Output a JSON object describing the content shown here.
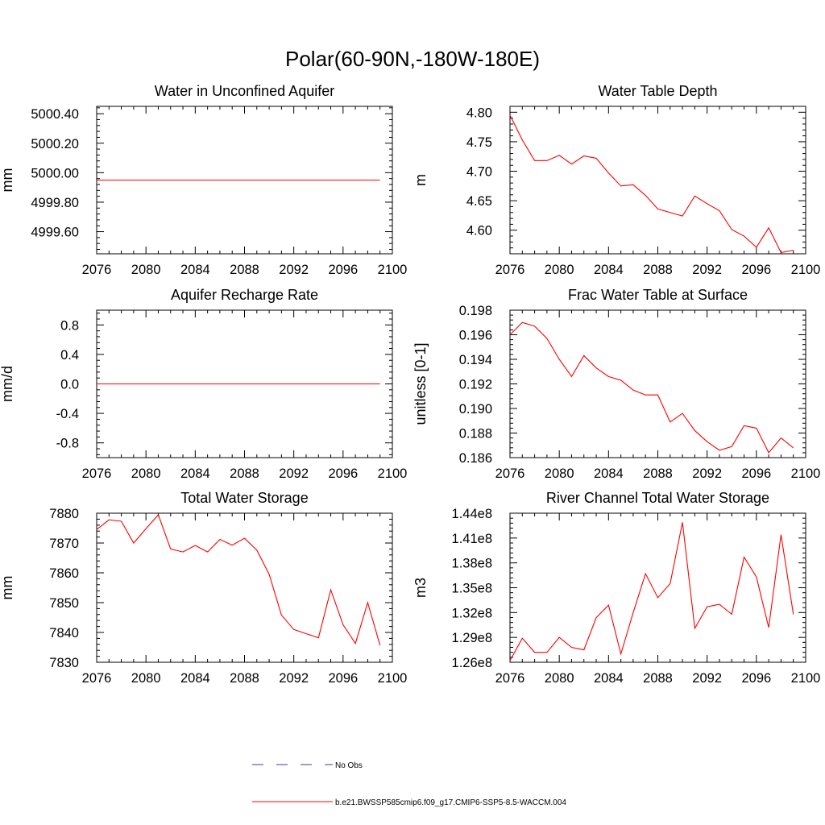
{
  "figure_title": "Polar(60-90N,-180W-180E)",
  "legend": {
    "entries": [
      {
        "label": "No Obs",
        "color": "#3a3ab8",
        "style": "dashed"
      },
      {
        "label": "b.e21.BWSSP585cmip6.f09_g17.CMIP6-SSP5-8.5-WACCM.004",
        "color": "#ff0000",
        "style": "solid"
      }
    ]
  },
  "chart_data": [
    {
      "type": "line",
      "title": "Water in Unconfined Aquifer",
      "xlabel": "",
      "ylabel": "mm",
      "xlim": [
        2076,
        2100
      ],
      "ylim": [
        4999.45,
        5000.45
      ],
      "xticks": [
        2076,
        2080,
        2084,
        2088,
        2092,
        2096,
        2100
      ],
      "xtick_labels": [
        "2076",
        "2080",
        "2084",
        "2088",
        "2092",
        "2096",
        "2100"
      ],
      "yticks": [
        4999.6,
        4999.8,
        5000.0,
        5000.2,
        5000.4
      ],
      "ytick_labels": [
        "4999.60",
        "4999.80",
        "5000.00",
        "5000.20",
        "5000.40"
      ],
      "grid": false,
      "series": [
        {
          "name": "b.e21.BWSSP585cmip6.f09_g17.CMIP6-SSP5-8.5-WACCM.004",
          "color": "#ff0000",
          "x": [
            2076,
            2077,
            2078,
            2079,
            2080,
            2081,
            2082,
            2083,
            2084,
            2085,
            2086,
            2087,
            2088,
            2089,
            2090,
            2091,
            2092,
            2093,
            2094,
            2095,
            2096,
            2097,
            2098,
            2099
          ],
          "y": [
            4999.95,
            4999.95,
            4999.95,
            4999.95,
            4999.95,
            4999.95,
            4999.95,
            4999.95,
            4999.95,
            4999.95,
            4999.95,
            4999.95,
            4999.95,
            4999.95,
            4999.95,
            4999.95,
            4999.95,
            4999.95,
            4999.95,
            4999.95,
            4999.95,
            4999.95,
            4999.95,
            4999.95
          ]
        }
      ]
    },
    {
      "type": "line",
      "title": "Water Table Depth",
      "xlabel": "",
      "ylabel": "m",
      "xlim": [
        2076,
        2100
      ],
      "ylim": [
        4.56,
        4.81
      ],
      "xticks": [
        2076,
        2080,
        2084,
        2088,
        2092,
        2096,
        2100
      ],
      "xtick_labels": [
        "2076",
        "2080",
        "2084",
        "2088",
        "2092",
        "2096",
        "2100"
      ],
      "yticks": [
        4.6,
        4.65,
        4.7,
        4.75,
        4.8
      ],
      "ytick_labels": [
        "4.60",
        "4.65",
        "4.70",
        "4.75",
        "4.80"
      ],
      "grid": false,
      "series": [
        {
          "name": "b.e21.BWSSP585cmip6.f09_g17.CMIP6-SSP5-8.5-WACCM.004",
          "color": "#ff0000",
          "x": [
            2076,
            2077,
            2078,
            2079,
            2080,
            2081,
            2082,
            2083,
            2084,
            2085,
            2086,
            2087,
            2088,
            2089,
            2090,
            2091,
            2092,
            2093,
            2094,
            2095,
            2096,
            2097,
            2098,
            2099
          ],
          "y": [
            4.795,
            4.753,
            4.718,
            4.718,
            4.727,
            4.712,
            4.726,
            4.722,
            4.697,
            4.675,
            4.677,
            4.659,
            4.636,
            4.63,
            4.624,
            4.658,
            4.645,
            4.633,
            4.601,
            4.59,
            4.571,
            4.604,
            4.562,
            4.566
          ]
        }
      ]
    },
    {
      "type": "line",
      "title": "Aquifer Recharge Rate",
      "xlabel": "",
      "ylabel": "mm/d",
      "xlim": [
        2076,
        2100
      ],
      "ylim": [
        -1.0,
        1.0
      ],
      "xticks": [
        2076,
        2080,
        2084,
        2088,
        2092,
        2096,
        2100
      ],
      "xtick_labels": [
        "2076",
        "2080",
        "2084",
        "2088",
        "2092",
        "2096",
        "2100"
      ],
      "yticks": [
        -0.8,
        -0.4,
        0.0,
        0.4,
        0.8
      ],
      "ytick_labels": [
        "-0.8",
        "-0.4",
        "0.0",
        "0.4",
        "0.8"
      ],
      "grid": false,
      "series": [
        {
          "name": "b.e21.BWSSP585cmip6.f09_g17.CMIP6-SSP5-8.5-WACCM.004",
          "color": "#ff0000",
          "x": [
            2076,
            2077,
            2078,
            2079,
            2080,
            2081,
            2082,
            2083,
            2084,
            2085,
            2086,
            2087,
            2088,
            2089,
            2090,
            2091,
            2092,
            2093,
            2094,
            2095,
            2096,
            2097,
            2098,
            2099
          ],
          "y": [
            0,
            0,
            0,
            0,
            0,
            0,
            0,
            0,
            0,
            0,
            0,
            0,
            0,
            0,
            0,
            0,
            0,
            0,
            0,
            0,
            0,
            0,
            0,
            0
          ]
        }
      ]
    },
    {
      "type": "line",
      "title": "Frac Water Table at Surface",
      "xlabel": "",
      "ylabel": "unitless [0-1]",
      "xlim": [
        2076,
        2100
      ],
      "ylim": [
        0.186,
        0.198
      ],
      "xticks": [
        2076,
        2080,
        2084,
        2088,
        2092,
        2096,
        2100
      ],
      "xtick_labels": [
        "2076",
        "2080",
        "2084",
        "2088",
        "2092",
        "2096",
        "2100"
      ],
      "yticks": [
        0.186,
        0.188,
        0.19,
        0.192,
        0.194,
        0.196,
        0.198
      ],
      "ytick_labels": [
        "0.186",
        "0.188",
        "0.190",
        "0.192",
        "0.194",
        "0.196",
        "0.198"
      ],
      "grid": false,
      "series": [
        {
          "name": "b.e21.BWSSP585cmip6.f09_g17.CMIP6-SSP5-8.5-WACCM.004",
          "color": "#ff0000",
          "x": [
            2076,
            2077,
            2078,
            2079,
            2080,
            2081,
            2082,
            2083,
            2084,
            2085,
            2086,
            2087,
            2088,
            2089,
            2090,
            2091,
            2092,
            2093,
            2094,
            2095,
            2096,
            2097,
            2098,
            2099
          ],
          "y": [
            0.196,
            0.197,
            0.1967,
            0.1957,
            0.194,
            0.1926,
            0.1943,
            0.1933,
            0.1926,
            0.1923,
            0.1915,
            0.1911,
            0.1911,
            0.1889,
            0.1896,
            0.1882,
            0.1873,
            0.1866,
            0.1869,
            0.1886,
            0.1884,
            0.1864,
            0.1876,
            0.1868
          ]
        }
      ]
    },
    {
      "type": "line",
      "title": "Total Water Storage",
      "xlabel": "",
      "ylabel": "mm",
      "xlim": [
        2076,
        2100
      ],
      "ylim": [
        7830,
        7880
      ],
      "xticks": [
        2076,
        2080,
        2084,
        2088,
        2092,
        2096,
        2100
      ],
      "xtick_labels": [
        "2076",
        "2080",
        "2084",
        "2088",
        "2092",
        "2096",
        "2100"
      ],
      "yticks": [
        7830,
        7840,
        7850,
        7860,
        7870,
        7880
      ],
      "ytick_labels": [
        "7830",
        "7840",
        "7850",
        "7860",
        "7870",
        "7880"
      ],
      "grid": false,
      "series": [
        {
          "name": "b.e21.BWSSP585cmip6.f09_g17.CMIP6-SSP5-8.5-WACCM.004",
          "color": "#ff0000",
          "x": [
            2076,
            2077,
            2078,
            2079,
            2080,
            2081,
            2082,
            2083,
            2084,
            2085,
            2086,
            2087,
            2088,
            2089,
            2090,
            2091,
            2092,
            2093,
            2094,
            2095,
            2096,
            2097,
            2098,
            2099
          ],
          "y": [
            7874.5,
            7877.8,
            7877.3,
            7870.0,
            7874.8,
            7879.5,
            7868.0,
            7867.0,
            7869.2,
            7867.0,
            7871.2,
            7869.3,
            7871.6,
            7867.6,
            7859.5,
            7845.8,
            7841.0,
            7839.6,
            7838.2,
            7854.3,
            7842.6,
            7836.3,
            7850.0,
            7835.7
          ]
        }
      ]
    },
    {
      "type": "line",
      "title": "River Channel Total Water Storage",
      "xlabel": "",
      "ylabel": "m3",
      "xlim": [
        2076,
        2100
      ],
      "ylim": [
        126000000.0,
        144000000.0
      ],
      "xticks": [
        2076,
        2080,
        2084,
        2088,
        2092,
        2096,
        2100
      ],
      "xtick_labels": [
        "2076",
        "2080",
        "2084",
        "2088",
        "2092",
        "2096",
        "2100"
      ],
      "yticks": [
        126000000.0,
        129000000.0,
        132000000.0,
        135000000.0,
        138000000.0,
        141000000.0,
        144000000.0
      ],
      "ytick_labels": [
        "1.26e8",
        "1.29e8",
        "1.32e8",
        "1.35e8",
        "1.38e8",
        "1.41e8",
        "1.44e8"
      ],
      "grid": false,
      "series": [
        {
          "name": "b.e21.BWSSP585cmip6.f09_g17.CMIP6-SSP5-8.5-WACCM.004",
          "color": "#ff0000",
          "x": [
            2076,
            2077,
            2078,
            2079,
            2080,
            2081,
            2082,
            2083,
            2084,
            2085,
            2086,
            2087,
            2088,
            2089,
            2090,
            2091,
            2092,
            2093,
            2094,
            2095,
            2096,
            2097,
            2098,
            2099
          ],
          "y": [
            126200000.0,
            128900000.0,
            127200000.0,
            127200000.0,
            129000000.0,
            127800000.0,
            127500000.0,
            131400000.0,
            132900000.0,
            127000000.0,
            132000000.0,
            136700000.0,
            133800000.0,
            135500000.0,
            142900000.0,
            130100000.0,
            132700000.0,
            133000000.0,
            131800000.0,
            138700000.0,
            136300000.0,
            130200000.0,
            141400000.0,
            131800000.0
          ]
        }
      ]
    }
  ]
}
